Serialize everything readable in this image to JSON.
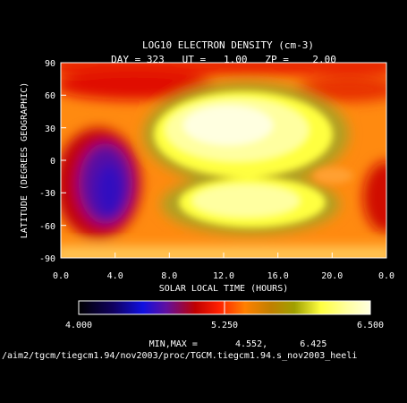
{
  "chart_data": {
    "type": "heatmap",
    "title": "LOG10 ELECTRON DENSITY (cm-3)",
    "subtitle": "DAY = 323   UT =   1.00   ZP =    2.00",
    "xlabel": "SOLAR LOCAL TIME (HOURS)",
    "ylabel": "LATITUDE (DEGREES GEOGRAPHIC)",
    "x_ticks": [
      "0.0",
      "4.0",
      "8.0",
      "12.0",
      "16.0",
      "20.0",
      "0.0"
    ],
    "y_ticks": [
      "90",
      "60",
      "30",
      "0",
      "-30",
      "-60",
      "-90"
    ],
    "x_range": [
      0,
      24
    ],
    "y_range": [
      -90,
      90
    ],
    "colorbar": {
      "min_label": "4.000",
      "mid_label": "5.250",
      "max_label": "6.500",
      "range": [
        4.0,
        6.5
      ]
    },
    "min_max_line": "MIN,MAX =       4.552,      6.425",
    "file_path": "/aim2/tgcm/tiegcm1.94/nov2003/proc/TGCM.tiegcm1.94.s_nov2003_heeli",
    "data_min": 4.552,
    "data_max": 6.425
  }
}
